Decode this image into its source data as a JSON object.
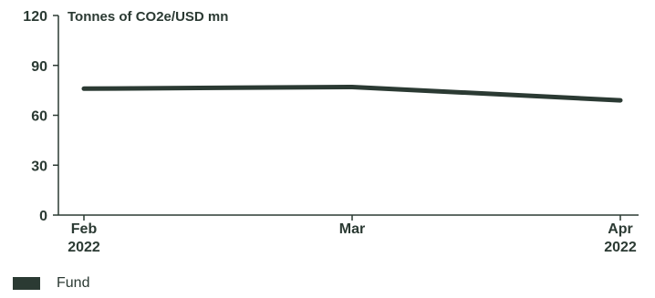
{
  "chart_data": {
    "type": "line",
    "title": "",
    "ylabel": "Tonnes of CO2e/USD mn",
    "xlabel": "",
    "categories": [
      {
        "month": "Feb",
        "year": "2022"
      },
      {
        "month": "Mar",
        "year": ""
      },
      {
        "month": "Apr",
        "year": "2022"
      }
    ],
    "series": [
      {
        "name": "Fund",
        "values": [
          76,
          77,
          69
        ],
        "color": "#2b3a33"
      }
    ],
    "ylim": [
      0,
      120
    ],
    "yticks": [
      "0",
      "30",
      "60",
      "90",
      "120"
    ],
    "grid": false,
    "legend_position": "bottom-left"
  },
  "legend": {
    "items": [
      {
        "label": "Fund",
        "color": "#2b3a33"
      }
    ]
  }
}
